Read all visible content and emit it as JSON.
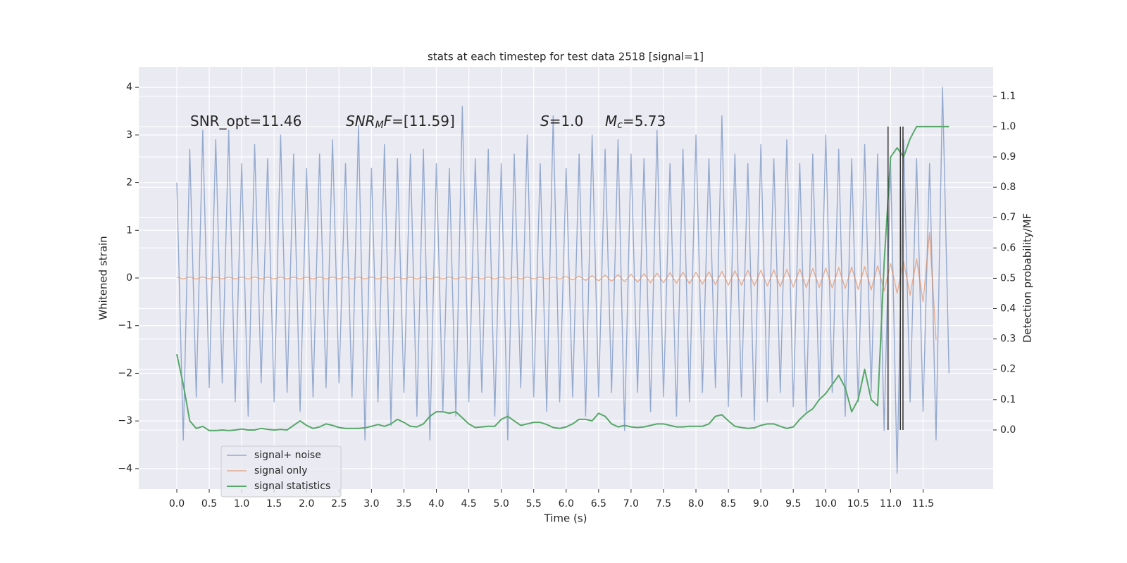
{
  "chart_data": {
    "type": "line",
    "title": "stats at each timestep for test data 2518 [signal=1]",
    "xlabel": "Time (s)",
    "ylabel": "Whitened strain",
    "y2label": "Detection probability/MF",
    "annotations": [
      [
        "SNR_opt=11.46"
      ],
      [
        "SNR",
        "M",
        "F",
        "=[11.59]"
      ],
      [
        "S",
        "=1.0"
      ],
      [
        "M",
        "c",
        "=5.73"
      ]
    ],
    "x": [
      0.0,
      0.1,
      0.2,
      0.3,
      0.4,
      0.5,
      0.6,
      0.7,
      0.8,
      0.9,
      1.0,
      1.1,
      1.2,
      1.3,
      1.4,
      1.5,
      1.6,
      1.7,
      1.8,
      1.9,
      2.0,
      2.1,
      2.2,
      2.3,
      2.4,
      2.5,
      2.6,
      2.7,
      2.8,
      2.9,
      3.0,
      3.1,
      3.2,
      3.3,
      3.4,
      3.5,
      3.6,
      3.7,
      3.8,
      3.9,
      4.0,
      4.1,
      4.2,
      4.3,
      4.4,
      4.5,
      4.6,
      4.7,
      4.8,
      4.9,
      5.0,
      5.1,
      5.2,
      5.3,
      5.4,
      5.5,
      5.6,
      5.7,
      5.8,
      5.9,
      6.0,
      6.1,
      6.2,
      6.3,
      6.4,
      6.5,
      6.6,
      6.7,
      6.8,
      6.9,
      7.0,
      7.1,
      7.2,
      7.3,
      7.4,
      7.5,
      7.6,
      7.7,
      7.8,
      7.9,
      8.0,
      8.1,
      8.2,
      8.3,
      8.4,
      8.5,
      8.6,
      8.7,
      8.8,
      8.9,
      9.0,
      9.1,
      9.2,
      9.3,
      9.4,
      9.5,
      9.6,
      9.7,
      9.8,
      9.9,
      10.0,
      10.1,
      10.2,
      10.3,
      10.4,
      10.5,
      10.6,
      10.7,
      10.8,
      10.9,
      11.0,
      11.1,
      11.2,
      11.3,
      11.4,
      11.5,
      11.6,
      11.7,
      11.8,
      11.9
    ],
    "series": [
      {
        "name": "signal+ noise",
        "color": "#4c72b0",
        "values": [
          2.0,
          -3.4,
          2.7,
          -2.5,
          3.1,
          -2.3,
          2.9,
          -2.2,
          3.1,
          -2.6,
          2.4,
          -2.9,
          2.8,
          -2.2,
          2.5,
          -2.6,
          3.0,
          -2.4,
          2.6,
          -2.8,
          2.3,
          -2.5,
          2.6,
          -2.3,
          2.9,
          -2.2,
          2.4,
          -2.5,
          3.2,
          -3.4,
          2.3,
          -2.6,
          2.8,
          -3.1,
          2.5,
          -2.4,
          2.6,
          -2.9,
          2.7,
          -3.4,
          2.4,
          -2.8,
          2.3,
          -2.9,
          3.6,
          -2.6,
          2.5,
          -2.4,
          2.7,
          -2.9,
          2.4,
          -3.4,
          2.6,
          -2.3,
          3.0,
          -2.5,
          2.4,
          -2.8,
          3.4,
          -2.6,
          2.3,
          -2.5,
          2.6,
          -2.9,
          3.0,
          -2.5,
          2.7,
          -2.4,
          2.9,
          -3.2,
          2.6,
          -2.4,
          2.5,
          -2.8,
          3.1,
          -2.5,
          2.4,
          -2.9,
          2.7,
          -2.6,
          3.0,
          -2.4,
          2.5,
          -2.3,
          3.4,
          -2.7,
          2.6,
          -2.5,
          2.4,
          -3.0,
          2.8,
          -2.6,
          2.5,
          -2.4,
          2.9,
          -2.7,
          2.4,
          -2.8,
          2.6,
          -2.5,
          3.0,
          -2.4,
          2.7,
          -2.9,
          2.5,
          -2.6,
          2.8,
          -2.4,
          2.6,
          -3.2,
          2.4,
          -4.1,
          2.9,
          -2.6,
          2.5,
          -2.8,
          2.4,
          -3.4,
          4.0,
          -2.0
        ]
      },
      {
        "name": "signal only",
        "color": "#dd8452",
        "values": [
          0.02,
          -0.02,
          0.02,
          -0.02,
          0.02,
          -0.02,
          0.02,
          -0.02,
          0.02,
          -0.02,
          0.02,
          -0.02,
          0.02,
          -0.02,
          0.02,
          -0.02,
          0.02,
          -0.02,
          0.02,
          -0.02,
          0.02,
          -0.02,
          0.02,
          -0.02,
          0.02,
          -0.02,
          0.02,
          -0.02,
          0.02,
          -0.02,
          0.02,
          -0.02,
          0.02,
          -0.02,
          0.02,
          -0.02,
          0.02,
          -0.02,
          0.02,
          -0.02,
          0.02,
          -0.02,
          0.02,
          -0.02,
          0.02,
          -0.02,
          0.02,
          -0.02,
          0.02,
          -0.02,
          0.02,
          -0.02,
          0.02,
          -0.02,
          0.02,
          -0.02,
          0.02,
          -0.02,
          0.02,
          -0.02,
          0.03,
          -0.04,
          0.04,
          -0.05,
          0.05,
          -0.06,
          0.06,
          -0.07,
          0.07,
          -0.08,
          0.08,
          -0.09,
          0.09,
          -0.1,
          0.1,
          -0.1,
          0.11,
          -0.11,
          0.12,
          -0.12,
          0.12,
          -0.13,
          0.13,
          -0.14,
          0.14,
          -0.15,
          0.15,
          -0.15,
          0.16,
          -0.16,
          0.16,
          -0.17,
          0.17,
          -0.18,
          0.18,
          -0.19,
          0.19,
          -0.2,
          0.2,
          -0.2,
          0.21,
          -0.21,
          0.22,
          -0.22,
          0.23,
          -0.24,
          0.24,
          -0.25,
          0.26,
          -0.27,
          0.3,
          -0.32,
          0.34,
          -0.36,
          0.4,
          -0.5,
          0.95,
          -1.3,
          null,
          null
        ]
      },
      {
        "name": "signal statistics",
        "color": "#55a868",
        "axis": "y2",
        "values": [
          0.25,
          0.15,
          0.03,
          0.005,
          0.012,
          -0.002,
          -0.002,
          0.0,
          -0.002,
          0.0,
          0.003,
          0.0,
          0.0,
          0.005,
          0.002,
          0.0,
          0.002,
          0.0,
          0.015,
          0.03,
          0.015,
          0.005,
          0.01,
          0.02,
          0.015,
          0.008,
          0.005,
          0.005,
          0.005,
          0.007,
          0.012,
          0.018,
          0.012,
          0.02,
          0.035,
          0.025,
          0.012,
          0.01,
          0.02,
          0.045,
          0.06,
          0.06,
          0.055,
          0.06,
          0.04,
          0.02,
          0.008,
          0.01,
          0.012,
          0.012,
          0.035,
          0.045,
          0.03,
          0.015,
          0.02,
          0.025,
          0.025,
          0.018,
          0.008,
          0.005,
          0.01,
          0.02,
          0.035,
          0.035,
          0.03,
          0.055,
          0.045,
          0.02,
          0.01,
          0.015,
          0.01,
          0.008,
          0.01,
          0.015,
          0.02,
          0.02,
          0.015,
          0.01,
          0.01,
          0.012,
          0.012,
          0.012,
          0.02,
          0.045,
          0.05,
          0.03,
          0.012,
          0.008,
          0.005,
          0.007,
          0.015,
          0.02,
          0.02,
          0.012,
          0.005,
          0.01,
          0.035,
          0.055,
          0.07,
          0.1,
          0.12,
          0.15,
          0.18,
          0.14,
          0.06,
          0.1,
          0.2,
          0.1,
          0.08,
          0.55,
          0.9,
          0.93,
          0.9,
          0.96,
          1.0,
          1.0,
          1.0,
          1.0,
          1.0,
          1.0
        ]
      }
    ],
    "vlines": [
      10.96,
      11.15,
      11.19
    ],
    "vline_color": "#333333",
    "xlim": [
      -0.586,
      12.58
    ],
    "xticks": [
      {
        "value": 0.0,
        "label": "0.0"
      },
      0.5,
      {
        "value": 1.0,
        "label": "1.0"
      },
      1.5,
      {
        "value": 2.0,
        "label": "2.0"
      },
      2.5,
      {
        "value": 3.0,
        "label": "3.0"
      },
      3.5,
      {
        "value": 4.0,
        "label": "4.0"
      },
      4.5,
      {
        "value": 5.0,
        "label": "5.0"
      },
      5.5,
      {
        "value": 6.0,
        "label": "6.0"
      },
      6.5,
      {
        "value": 7.0,
        "label": "7.0"
      },
      7.5,
      {
        "value": 8.0,
        "label": "8.0"
      },
      8.5,
      {
        "value": 9.0,
        "label": "9.0"
      },
      9.5,
      {
        "value": 10.0,
        "label": "10.0"
      },
      10.5,
      {
        "value": 11.0,
        "label": "11.0"
      },
      11.5
    ],
    "ylim": [
      -4.43,
      4.43
    ],
    "yticks": [
      {
        "value": -4,
        "label": "−4"
      },
      {
        "value": -3,
        "label": "−3"
      },
      {
        "value": -2,
        "label": "−2"
      },
      {
        "value": -1,
        "label": "−1"
      },
      0,
      1,
      2,
      3,
      4
    ],
    "y2lim": [
      -0.195,
      1.197
    ],
    "y2ticks": [
      {
        "value": 0.0,
        "label": "0.0"
      },
      0.1,
      0.2,
      0.3,
      0.4,
      0.5,
      0.6,
      0.7,
      0.8,
      0.9,
      {
        "value": 1.0,
        "label": "1.0"
      },
      1.1
    ],
    "grid": true,
    "legend": "lower left"
  }
}
